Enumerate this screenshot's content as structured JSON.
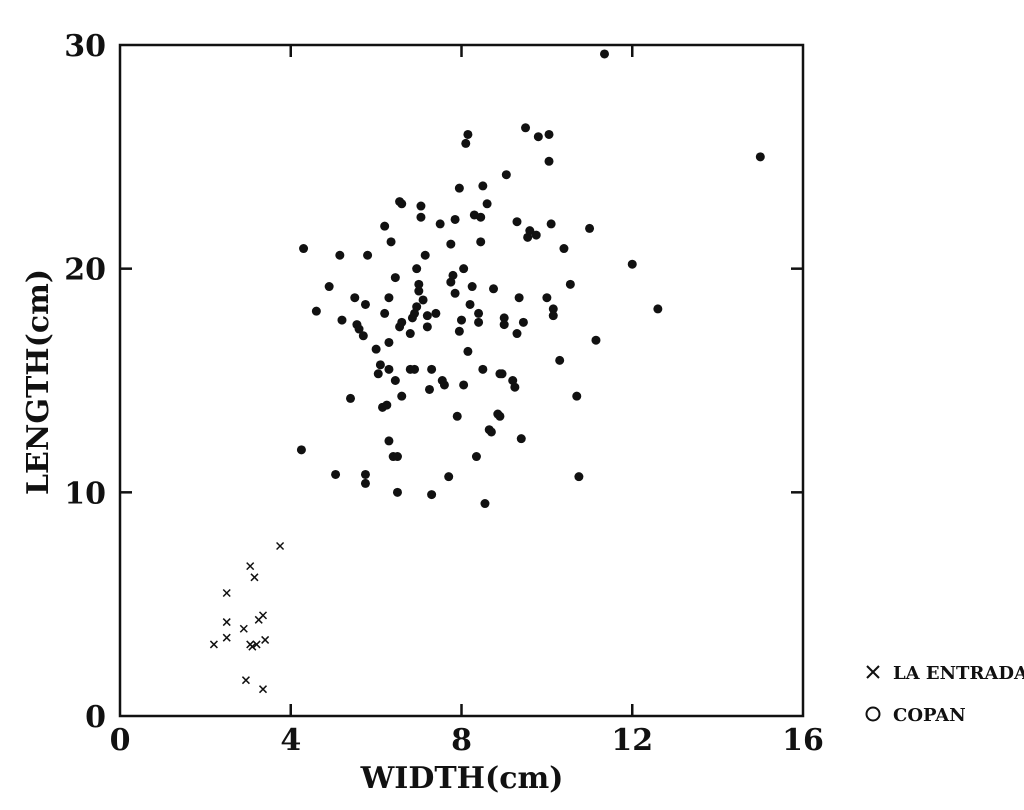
{
  "chart_data": {
    "type": "scatter",
    "xlabel": "WIDTH(cm)",
    "ylabel": "LENGTH(cm)",
    "xlim": [
      0,
      16
    ],
    "ylim": [
      0,
      30
    ],
    "x_ticks": [
      "0",
      "4",
      "8",
      "12",
      "16"
    ],
    "y_ticks": [
      "0",
      "10",
      "20",
      "30"
    ],
    "x_tick_values": [
      0,
      4,
      8,
      12,
      16
    ],
    "y_tick_values": [
      0,
      10,
      20,
      30
    ],
    "grid": false,
    "legend_position": "bottom-right, outside plot",
    "series": [
      {
        "name": "LA ENTRADA",
        "marker": "x",
        "points": [
          [
            2.2,
            3.2
          ],
          [
            2.5,
            5.5
          ],
          [
            2.5,
            4.2
          ],
          [
            2.5,
            3.5
          ],
          [
            2.9,
            3.9
          ],
          [
            2.95,
            1.6
          ],
          [
            3.05,
            6.7
          ],
          [
            3.05,
            3.2
          ],
          [
            3.1,
            3.1
          ],
          [
            3.15,
            6.2
          ],
          [
            3.2,
            3.2
          ],
          [
            3.25,
            4.3
          ],
          [
            3.35,
            4.5
          ],
          [
            3.35,
            1.2
          ],
          [
            3.4,
            3.4
          ],
          [
            3.75,
            7.6
          ]
        ]
      },
      {
        "name": "COPAN",
        "marker": "o",
        "points": [
          [
            4.25,
            11.9
          ],
          [
            4.3,
            20.9
          ],
          [
            4.6,
            18.1
          ],
          [
            4.9,
            19.2
          ],
          [
            5.05,
            10.8
          ],
          [
            5.15,
            20.6
          ],
          [
            5.2,
            17.7
          ],
          [
            5.4,
            14.2
          ],
          [
            5.5,
            18.7
          ],
          [
            5.55,
            17.5
          ],
          [
            5.6,
            17.3
          ],
          [
            5.7,
            17.0
          ],
          [
            5.75,
            18.4
          ],
          [
            5.75,
            10.8
          ],
          [
            5.75,
            10.4
          ],
          [
            5.8,
            20.6
          ],
          [
            6.0,
            16.4
          ],
          [
            6.05,
            15.3
          ],
          [
            6.1,
            15.7
          ],
          [
            6.15,
            13.8
          ],
          [
            6.2,
            18.0
          ],
          [
            6.2,
            21.9
          ],
          [
            6.25,
            13.9
          ],
          [
            6.3,
            12.3
          ],
          [
            6.3,
            15.5
          ],
          [
            6.3,
            16.7
          ],
          [
            6.3,
            18.7
          ],
          [
            6.35,
            21.2
          ],
          [
            6.4,
            11.6
          ],
          [
            6.45,
            15.0
          ],
          [
            6.45,
            19.6
          ],
          [
            6.5,
            11.6
          ],
          [
            6.5,
            10.0
          ],
          [
            6.55,
            17.4
          ],
          [
            6.6,
            14.3
          ],
          [
            6.6,
            17.6
          ],
          [
            6.6,
            22.9
          ],
          [
            6.55,
            23.0
          ],
          [
            6.8,
            15.5
          ],
          [
            6.8,
            17.1
          ],
          [
            6.85,
            17.8
          ],
          [
            6.9,
            15.5
          ],
          [
            6.9,
            18.0
          ],
          [
            6.95,
            18.3
          ],
          [
            6.95,
            20.0
          ],
          [
            7.0,
            19.0
          ],
          [
            7.0,
            19.3
          ],
          [
            7.05,
            22.3
          ],
          [
            7.05,
            22.8
          ],
          [
            7.1,
            18.6
          ],
          [
            7.15,
            20.6
          ],
          [
            7.2,
            17.4
          ],
          [
            7.2,
            17.9
          ],
          [
            7.25,
            14.6
          ],
          [
            7.3,
            15.5
          ],
          [
            7.3,
            9.9
          ],
          [
            7.4,
            18.0
          ],
          [
            7.5,
            22.0
          ],
          [
            7.55,
            15.0
          ],
          [
            7.6,
            14.8
          ],
          [
            7.7,
            10.7
          ],
          [
            7.75,
            19.4
          ],
          [
            7.75,
            21.1
          ],
          [
            7.8,
            19.7
          ],
          [
            7.85,
            18.9
          ],
          [
            7.85,
            22.2
          ],
          [
            7.9,
            13.4
          ],
          [
            7.95,
            17.2
          ],
          [
            8.0,
            17.7
          ],
          [
            7.95,
            23.6
          ],
          [
            8.05,
            14.8
          ],
          [
            8.05,
            20.0
          ],
          [
            8.1,
            25.6
          ],
          [
            8.15,
            26.0
          ],
          [
            8.15,
            16.3
          ],
          [
            8.2,
            18.4
          ],
          [
            8.25,
            19.2
          ],
          [
            8.3,
            22.4
          ],
          [
            8.35,
            11.6
          ],
          [
            8.4,
            17.6
          ],
          [
            8.4,
            18.0
          ],
          [
            8.45,
            21.2
          ],
          [
            8.45,
            22.3
          ],
          [
            8.5,
            15.5
          ],
          [
            8.5,
            23.7
          ],
          [
            8.55,
            9.5
          ],
          [
            8.6,
            22.9
          ],
          [
            8.65,
            12.8
          ],
          [
            8.7,
            12.7
          ],
          [
            8.75,
            19.1
          ],
          [
            8.85,
            13.5
          ],
          [
            8.9,
            13.4
          ],
          [
            8.9,
            15.3
          ],
          [
            8.95,
            15.3
          ],
          [
            9.0,
            17.8
          ],
          [
            9.0,
            17.5
          ],
          [
            9.05,
            24.2
          ],
          [
            9.2,
            15.0
          ],
          [
            9.25,
            14.7
          ],
          [
            9.3,
            22.1
          ],
          [
            9.3,
            17.1
          ],
          [
            9.35,
            18.7
          ],
          [
            9.4,
            12.4
          ],
          [
            9.45,
            17.6
          ],
          [
            9.5,
            26.3
          ],
          [
            9.55,
            21.4
          ],
          [
            9.6,
            21.7
          ],
          [
            9.75,
            21.5
          ],
          [
            9.8,
            25.9
          ],
          [
            10.0,
            18.7
          ],
          [
            10.05,
            26.0
          ],
          [
            10.05,
            24.8
          ],
          [
            10.1,
            22.0
          ],
          [
            10.15,
            18.2
          ],
          [
            10.15,
            17.9
          ],
          [
            10.3,
            15.9
          ],
          [
            10.4,
            20.9
          ],
          [
            10.55,
            19.3
          ],
          [
            10.7,
            14.3
          ],
          [
            10.75,
            10.7
          ],
          [
            11.0,
            21.8
          ],
          [
            11.15,
            16.8
          ],
          [
            11.35,
            29.6
          ],
          [
            12.0,
            20.2
          ],
          [
            12.6,
            18.2
          ],
          [
            15.0,
            25.0
          ]
        ]
      }
    ]
  }
}
